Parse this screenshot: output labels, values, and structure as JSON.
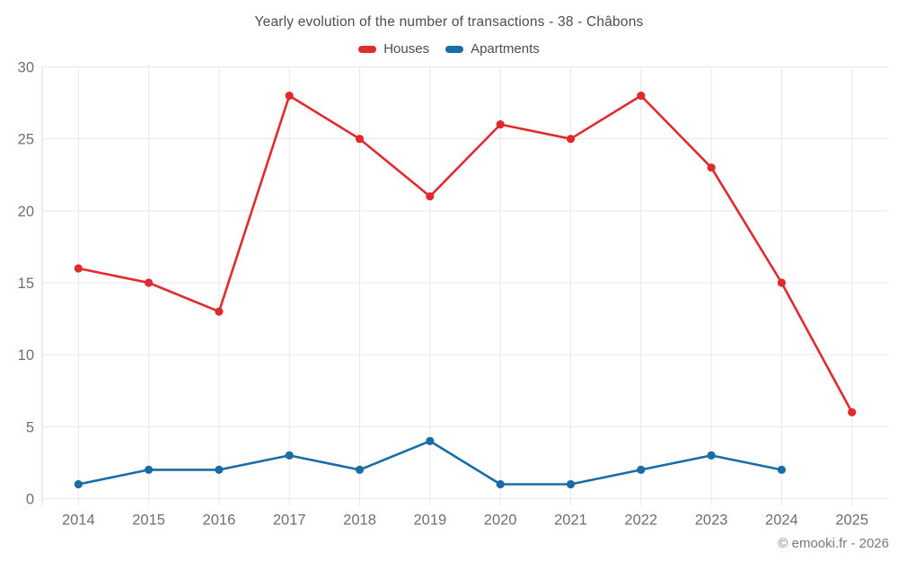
{
  "chart_data": {
    "type": "line",
    "title": "Yearly evolution of the number of transactions - 38 - Châbons",
    "categories": [
      "2014",
      "2015",
      "2016",
      "2017",
      "2018",
      "2019",
      "2020",
      "2021",
      "2022",
      "2023",
      "2024",
      "2025"
    ],
    "series": [
      {
        "name": "Houses",
        "color": "#df2b2e",
        "values": [
          16,
          15,
          13,
          28,
          25,
          21,
          26,
          25,
          28,
          23,
          15,
          6
        ]
      },
      {
        "name": "Apartments",
        "color": "#186da6",
        "values": [
          1,
          2,
          2,
          3,
          2,
          4,
          1,
          1,
          2,
          3,
          2,
          null
        ]
      }
    ],
    "xlabel": "",
    "ylabel": "",
    "ylim": [
      0,
      30
    ],
    "yticks": [
      0,
      5,
      10,
      15,
      20,
      25,
      30
    ],
    "grid": true,
    "legend_position": "top-center"
  },
  "footer": {
    "text": "© emooki.fr - 2026"
  },
  "ui_colors": {
    "grid_line": "#e7e7e7",
    "axis_line": "#dddddd",
    "tick_text": "#6f6f6f",
    "title_text": "#4d4d4d",
    "footer_text": "#7a7a7a",
    "background": "#ffffff"
  }
}
